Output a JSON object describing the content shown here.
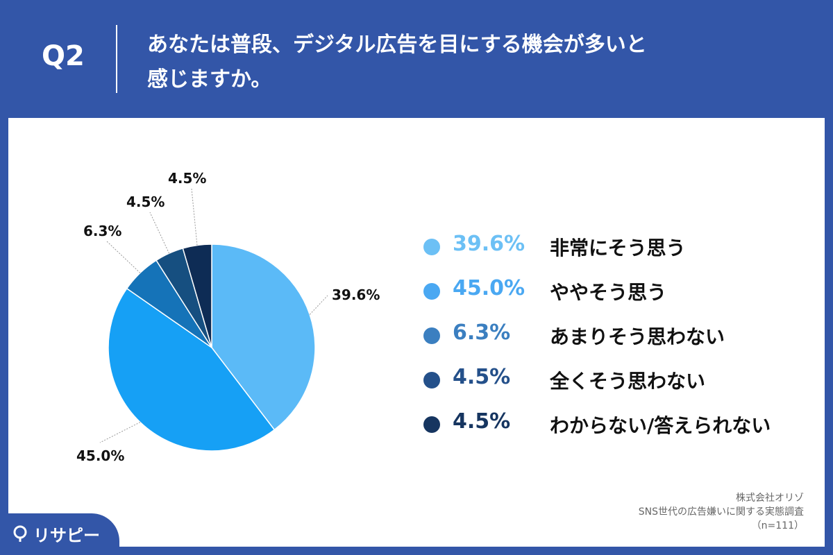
{
  "header": {
    "q_label": "Q2",
    "question_line1": "あなたは普段、デジタル広告を目にする機会が多いと",
    "question_line2": "感じますか。"
  },
  "legend": {
    "items": [
      {
        "pct": "39.6%",
        "label": "非常にそう思う",
        "color": "#6cc0f5"
      },
      {
        "pct": "45.0%",
        "label": "ややそう思う",
        "color": "#4aa8f2"
      },
      {
        "pct": "6.3%",
        "label": "あまりそう思わない",
        "color": "#3b7fc0"
      },
      {
        "pct": "4.5%",
        "label": "全くそう思わない",
        "color": "#24508a"
      },
      {
        "pct": "4.5%",
        "label": "わからない/答えられない",
        "color": "#163560"
      }
    ]
  },
  "chart_data": {
    "type": "pie",
    "categories": [
      "非常にそう思う",
      "ややそう思う",
      "あまりそう思わない",
      "全くそう思わない",
      "わからない/答えられない"
    ],
    "values": [
      39.6,
      45.0,
      6.3,
      4.5,
      4.5
    ],
    "data_labels": [
      "39.6%",
      "45.0%",
      "6.3%",
      "4.5%",
      "4.5%"
    ],
    "colors": [
      "#5bbaf7",
      "#16a0f5",
      "#1573b8",
      "#164f80",
      "#0e2c55"
    ],
    "legend_position": "right",
    "start": "12 o'clock, clockwise"
  },
  "source": {
    "line1": "株式会社オリゾ",
    "line2": "SNS世代の広告嫌いに関する実態調査",
    "line3": "（n=111）"
  },
  "brand": {
    "name": "リサピー",
    "accent": "#3356a8"
  }
}
